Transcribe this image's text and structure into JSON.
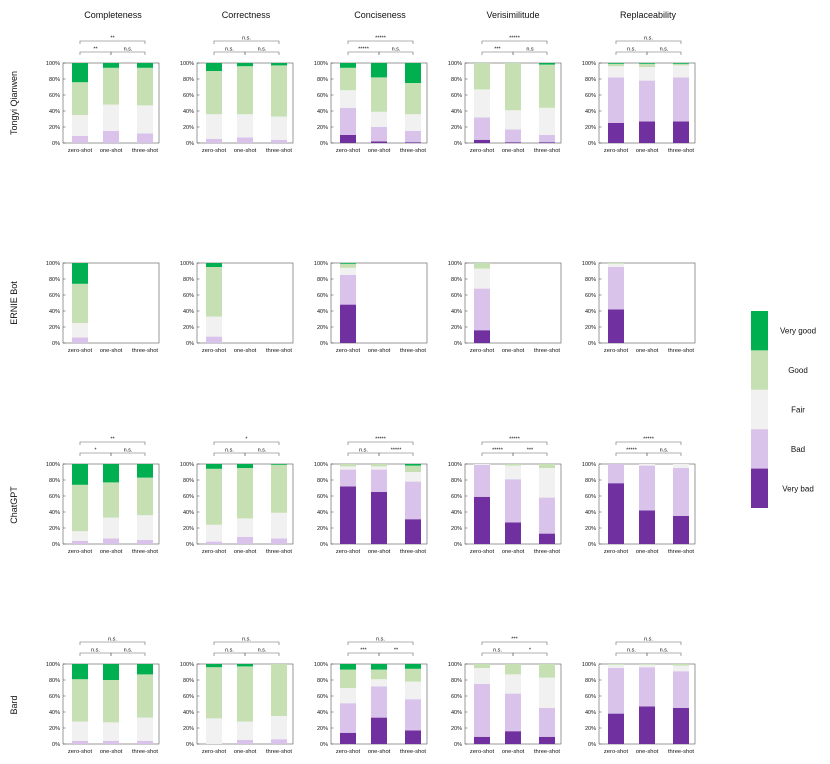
{
  "columns": [
    "Completeness",
    "Correctness",
    "Conciseness",
    "Verisimilitude",
    "Replaceability"
  ],
  "rows": [
    "Tongyi Qianwen",
    "ERNIE Bot",
    "ChatGPT",
    "Bard"
  ],
  "legend": [
    "Very good",
    "Good",
    "Fair",
    "Bad",
    "Very bad"
  ],
  "colors": {
    "very_bad": "#7030a0",
    "bad": "#d9c3ea",
    "fair": "#f1f1f1",
    "good": "#c6e0b4",
    "very_good": "#00b050"
  },
  "chart_data": {
    "type": "bar",
    "stacked": true,
    "categories": [
      "zero-shot",
      "one-shot",
      "three-shot"
    ],
    "y_ticks": [
      "0%",
      "20%",
      "40%",
      "60%",
      "80%",
      "100%"
    ],
    "ylim": [
      0,
      100
    ],
    "levels": [
      "Very bad",
      "Bad",
      "Fair",
      "Good",
      "Very good"
    ],
    "panels": [
      {
        "row": "Tongyi Qianwen",
        "column": "Completeness",
        "bars": [
          [
            0,
            9,
            26,
            41,
            24
          ],
          [
            0,
            15,
            33,
            46,
            6
          ],
          [
            0,
            12,
            35,
            47,
            6
          ]
        ],
        "sig": [
          {
            "from": 0,
            "to": 1,
            "label": "**",
            "level": 1
          },
          {
            "from": 1,
            "to": 2,
            "label": "n.s.",
            "level": 1
          },
          {
            "from": 0,
            "to": 2,
            "label": "**",
            "level": 2
          }
        ]
      },
      {
        "row": "Tongyi Qianwen",
        "column": "Correctness",
        "bars": [
          [
            0,
            5,
            31,
            54,
            10
          ],
          [
            0,
            7,
            29,
            60,
            4
          ],
          [
            0,
            4,
            29,
            64,
            3
          ]
        ],
        "sig": [
          {
            "from": 0,
            "to": 1,
            "label": "n.s.",
            "level": 1
          },
          {
            "from": 1,
            "to": 2,
            "label": "n.s.",
            "level": 1
          },
          {
            "from": 0,
            "to": 2,
            "label": "n.s.",
            "level": 2
          }
        ]
      },
      {
        "row": "Tongyi Qianwen",
        "column": "Conciseness",
        "bars": [
          [
            10,
            34,
            22,
            28,
            6
          ],
          [
            2,
            18,
            19,
            43,
            18
          ],
          [
            1,
            14,
            21,
            39,
            25
          ]
        ],
        "sig": [
          {
            "from": 0,
            "to": 1,
            "label": "*****",
            "level": 1
          },
          {
            "from": 1,
            "to": 2,
            "label": "n.s.",
            "level": 1
          },
          {
            "from": 0,
            "to": 2,
            "label": "*****",
            "level": 2
          }
        ]
      },
      {
        "row": "Tongyi Qianwen",
        "column": "Verisimilitude",
        "bars": [
          [
            4,
            28,
            35,
            33,
            0
          ],
          [
            1,
            16,
            24,
            59,
            0
          ],
          [
            1,
            9,
            34,
            54,
            2
          ]
        ],
        "sig": [
          {
            "from": 0,
            "to": 1,
            "label": "***",
            "level": 1
          },
          {
            "from": 1,
            "to": 2,
            "label": "n.s",
            "level": 1
          },
          {
            "from": 0,
            "to": 2,
            "label": "*****",
            "level": 2
          }
        ]
      },
      {
        "row": "Tongyi Qianwen",
        "column": "Replaceability",
        "bars": [
          [
            25,
            57,
            14,
            3,
            1
          ],
          [
            27,
            51,
            17,
            4,
            1
          ],
          [
            27,
            55,
            15,
            2,
            1
          ]
        ],
        "sig": [
          {
            "from": 0,
            "to": 1,
            "label": "n.s.",
            "level": 1
          },
          {
            "from": 1,
            "to": 2,
            "label": "n.s.",
            "level": 1
          },
          {
            "from": 0,
            "to": 2,
            "label": "n.s.",
            "level": 2
          }
        ]
      },
      {
        "row": "ERNIE Bot",
        "column": "Completeness",
        "bars": [
          [
            0,
            7,
            18,
            49,
            26
          ]
        ],
        "sig": []
      },
      {
        "row": "ERNIE Bot",
        "column": "Correctness",
        "bars": [
          [
            0,
            8,
            25,
            62,
            5
          ]
        ],
        "sig": []
      },
      {
        "row": "ERNIE Bot",
        "column": "Conciseness",
        "bars": [
          [
            48,
            37,
            9,
            5,
            1
          ]
        ],
        "sig": []
      },
      {
        "row": "ERNIE Bot",
        "column": "Verisimilitude",
        "bars": [
          [
            16,
            52,
            25,
            7,
            0
          ]
        ],
        "sig": []
      },
      {
        "row": "ERNIE Bot",
        "column": "Replaceability",
        "bars": [
          [
            42,
            53,
            4,
            1,
            0
          ]
        ],
        "sig": []
      },
      {
        "row": "ChatGPT",
        "column": "Completeness",
        "bars": [
          [
            0,
            4,
            12,
            58,
            26
          ],
          [
            0,
            7,
            26,
            44,
            23
          ],
          [
            0,
            5,
            31,
            47,
            17
          ]
        ],
        "sig": [
          {
            "from": 0,
            "to": 1,
            "label": "*",
            "level": 1
          },
          {
            "from": 1,
            "to": 2,
            "label": "n.s.",
            "level": 1
          },
          {
            "from": 0,
            "to": 2,
            "label": "**",
            "level": 2
          }
        ]
      },
      {
        "row": "ChatGPT",
        "column": "Correctness",
        "bars": [
          [
            0,
            3,
            21,
            70,
            6
          ],
          [
            0,
            9,
            23,
            63,
            5
          ],
          [
            0,
            7,
            32,
            60,
            1
          ]
        ],
        "sig": [
          {
            "from": 0,
            "to": 1,
            "label": "n.s.",
            "level": 1
          },
          {
            "from": 1,
            "to": 2,
            "label": "n.s.",
            "level": 1
          },
          {
            "from": 0,
            "to": 2,
            "label": "*",
            "level": 2
          }
        ]
      },
      {
        "row": "ChatGPT",
        "column": "Conciseness",
        "bars": [
          [
            72,
            21,
            4,
            3,
            0
          ],
          [
            65,
            28,
            4,
            3,
            0
          ],
          [
            31,
            47,
            12,
            8,
            2
          ]
        ],
        "sig": [
          {
            "from": 0,
            "to": 1,
            "label": "n.s.",
            "level": 1
          },
          {
            "from": 1,
            "to": 2,
            "label": "*****",
            "level": 1
          },
          {
            "from": 0,
            "to": 2,
            "label": "*****",
            "level": 2
          }
        ]
      },
      {
        "row": "ChatGPT",
        "column": "Verisimilitude",
        "bars": [
          [
            59,
            40,
            1,
            0,
            0
          ],
          [
            27,
            54,
            17,
            2,
            0
          ],
          [
            13,
            45,
            37,
            5,
            0
          ]
        ],
        "sig": [
          {
            "from": 0,
            "to": 1,
            "label": "*****",
            "level": 1
          },
          {
            "from": 1,
            "to": 2,
            "label": "***",
            "level": 1
          },
          {
            "from": 0,
            "to": 2,
            "label": "*****",
            "level": 2
          }
        ]
      },
      {
        "row": "ChatGPT",
        "column": "Replaceability",
        "bars": [
          [
            76,
            24,
            0,
            0,
            0
          ],
          [
            42,
            56,
            2,
            0,
            0
          ],
          [
            35,
            60,
            5,
            0,
            0
          ]
        ],
        "sig": [
          {
            "from": 0,
            "to": 1,
            "label": "*****",
            "level": 1
          },
          {
            "from": 1,
            "to": 2,
            "label": "n.s.",
            "level": 1
          },
          {
            "from": 0,
            "to": 2,
            "label": "*****",
            "level": 2
          }
        ]
      },
      {
        "row": "Bard",
        "column": "Completeness",
        "bars": [
          [
            0,
            4,
            24,
            53,
            19
          ],
          [
            0,
            4,
            23,
            53,
            20
          ],
          [
            0,
            4,
            29,
            54,
            13
          ]
        ],
        "sig": [
          {
            "from": 0,
            "to": 1,
            "label": "n.s.",
            "level": 1
          },
          {
            "from": 1,
            "to": 2,
            "label": "n.s.",
            "level": 1
          },
          {
            "from": 0,
            "to": 2,
            "label": "n.s.",
            "level": 2
          }
        ]
      },
      {
        "row": "Bard",
        "column": "Correctness",
        "bars": [
          [
            0,
            0,
            32,
            64,
            4
          ],
          [
            0,
            5,
            23,
            69,
            3
          ],
          [
            0,
            6,
            29,
            65,
            0
          ]
        ],
        "sig": [
          {
            "from": 0,
            "to": 1,
            "label": "n.s.",
            "level": 1
          },
          {
            "from": 1,
            "to": 2,
            "label": "n.s.",
            "level": 1
          },
          {
            "from": 0,
            "to": 2,
            "label": "n.s.",
            "level": 2
          }
        ]
      },
      {
        "row": "Bard",
        "column": "Conciseness",
        "bars": [
          [
            14,
            37,
            19,
            23,
            7
          ],
          [
            33,
            39,
            9,
            12,
            7
          ],
          [
            17,
            39,
            22,
            16,
            6
          ]
        ],
        "sig": [
          {
            "from": 0,
            "to": 1,
            "label": "***",
            "level": 1
          },
          {
            "from": 1,
            "to": 2,
            "label": "**",
            "level": 1
          },
          {
            "from": 0,
            "to": 2,
            "label": "n.s.",
            "level": 2
          }
        ]
      },
      {
        "row": "Bard",
        "column": "Verisimilitude",
        "bars": [
          [
            9,
            66,
            20,
            5,
            0
          ],
          [
            16,
            47,
            24,
            13,
            0
          ],
          [
            9,
            36,
            38,
            17,
            0
          ]
        ],
        "sig": [
          {
            "from": 0,
            "to": 1,
            "label": "n.s.",
            "level": 1
          },
          {
            "from": 1,
            "to": 2,
            "label": "*",
            "level": 1
          },
          {
            "from": 0,
            "to": 2,
            "label": "***",
            "level": 2
          }
        ]
      },
      {
        "row": "Bard",
        "column": "Replaceability",
        "bars": [
          [
            38,
            57,
            4,
            1,
            0
          ],
          [
            47,
            49,
            3,
            1,
            0
          ],
          [
            45,
            46,
            7,
            2,
            0
          ]
        ],
        "sig": [
          {
            "from": 0,
            "to": 1,
            "label": "n.s.",
            "level": 1
          },
          {
            "from": 1,
            "to": 2,
            "label": "n.s.",
            "level": 1
          },
          {
            "from": 0,
            "to": 2,
            "label": "n.s.",
            "level": 2
          }
        ]
      }
    ]
  }
}
